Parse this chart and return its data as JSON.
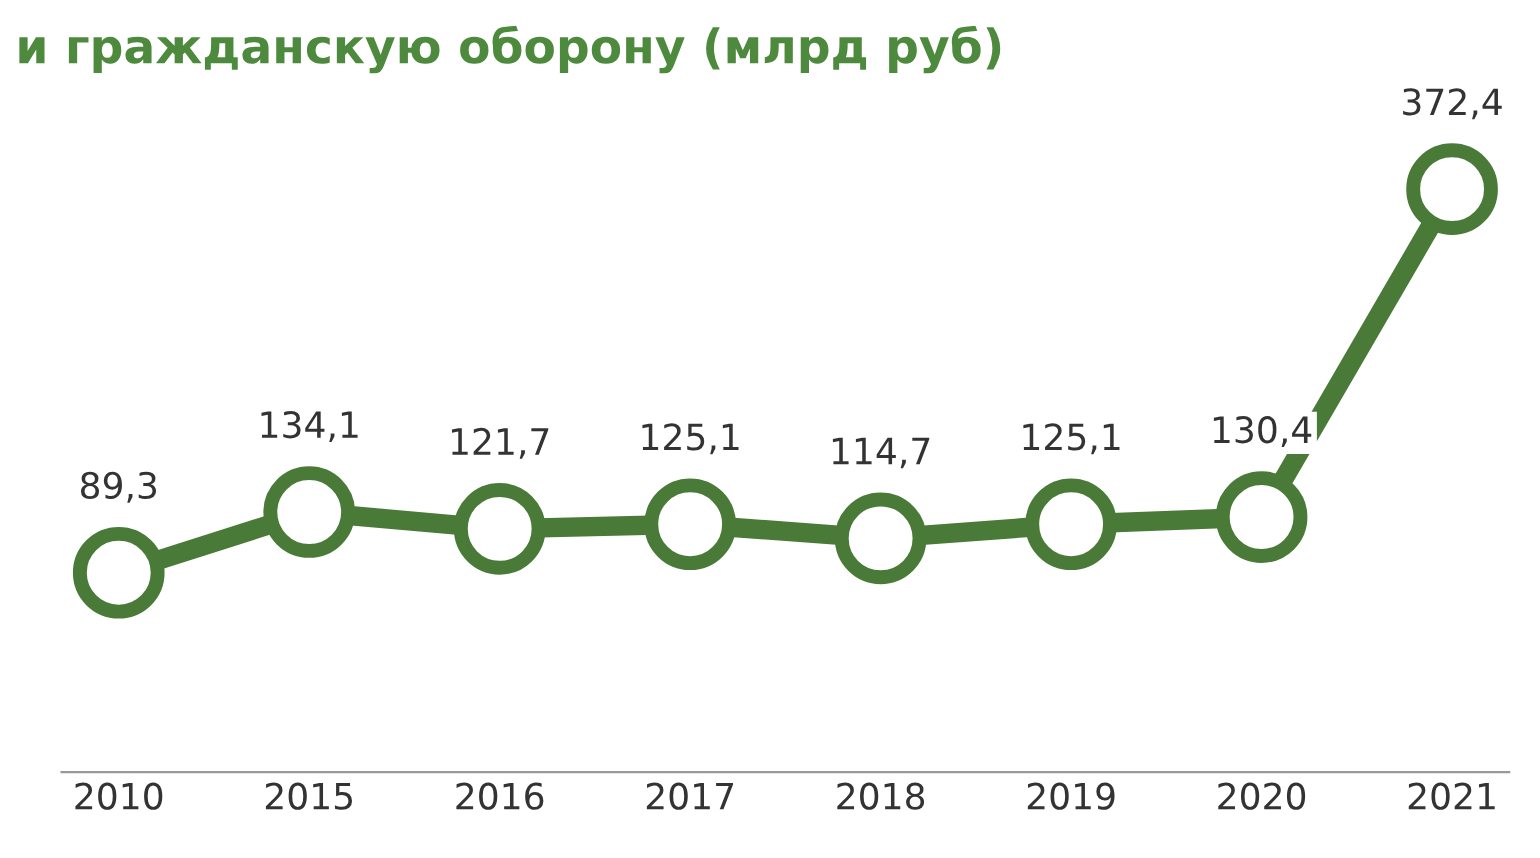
{
  "chart_data": {
    "type": "line",
    "title": "и гражданскую оборону (млрд руб)",
    "categories": [
      "2010",
      "2015",
      "2016",
      "2017",
      "2018",
      "2019",
      "2020",
      "2021"
    ],
    "series": [
      {
        "color": "#4a7a38",
        "values": [
          89.3,
          134.1,
          121.7,
          125.1,
          114.7,
          125.1,
          130.4,
          372.4
        ],
        "value_labels": [
          "89,3",
          "134,1",
          "121,7",
          "125,1",
          "114,7",
          "125,1",
          "130,4",
          "372,4"
        ]
      }
    ],
    "marker": "circle",
    "line_style": "solid",
    "grid": false,
    "legend": false,
    "tick_labels": "x"
  }
}
